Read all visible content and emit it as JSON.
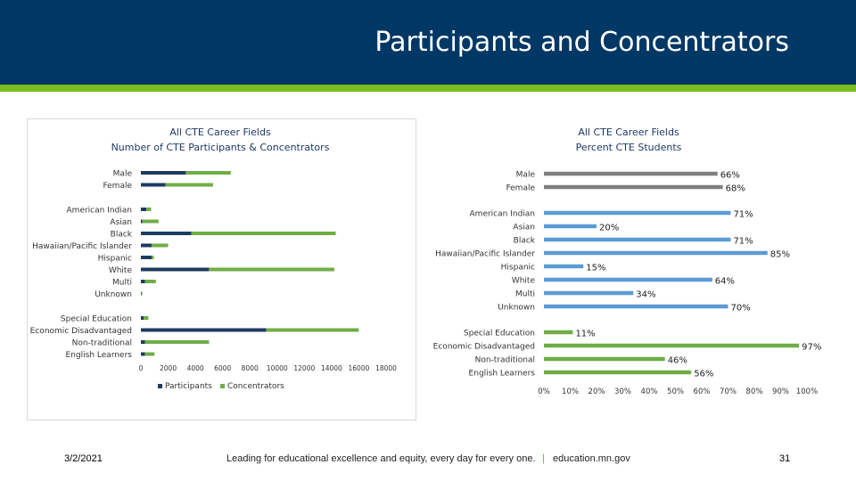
{
  "slide": {
    "title": "Participants and Concentrators",
    "footer_date": "3/2/2021",
    "footer_tagline": "Leading for educational excellence and equity, every day for every one.",
    "footer_separator": "|",
    "footer_site": "education.mn.gov",
    "page_number": "31"
  },
  "colors": {
    "header": "#003865",
    "stripe": "#78be20",
    "participants": "#1f3a5f",
    "concentrators": "#70ad47",
    "percent_gray": "#7f7f7f",
    "percent_blue": "#5b9bd5",
    "percent_green": "#70ad47"
  },
  "chart_data": [
    {
      "type": "bar",
      "orientation": "horizontal",
      "stacked": true,
      "title": "All CTE Career Fields",
      "subtitle": "Number of CTE Participants & Concentrators",
      "xlim": [
        0,
        18000
      ],
      "xticks": [
        "0",
        "2000",
        "4000",
        "6000",
        "8000",
        "10000",
        "12000",
        "14000",
        "16000",
        "18000"
      ],
      "legend": "bottom",
      "categories": [
        "Male",
        "Female",
        "American Indian",
        "Asian",
        "Black",
        "Hawaiian/Pacific Islander",
        "Hispanic",
        "White",
        "Multi",
        "Unknown",
        "Special Education",
        "Economic Disadvantaged",
        "Non-traditional",
        "English Learners"
      ],
      "groups": [
        [
          0,
          1
        ],
        [
          2,
          3,
          4,
          5,
          6,
          7,
          8,
          9
        ],
        [
          10,
          11,
          12,
          13
        ]
      ],
      "series": [
        {
          "name": "Participants",
          "values": [
            3300,
            1800,
            400,
            100,
            3700,
            800,
            800,
            5000,
            300,
            50,
            200,
            9200,
            300,
            300
          ]
        },
        {
          "name": "Concentrators",
          "values": [
            3300,
            3500,
            350,
            1200,
            10600,
            1200,
            150,
            9200,
            800,
            50,
            350,
            6800,
            4700,
            700
          ]
        }
      ]
    },
    {
      "type": "bar",
      "orientation": "horizontal",
      "title": "All CTE Career Fields",
      "subtitle": "Percent CTE Students",
      "xlim": [
        0,
        100
      ],
      "xticks": [
        "0%",
        "10%",
        "20%",
        "30%",
        "40%",
        "50%",
        "60%",
        "70%",
        "80%",
        "90%",
        "100%"
      ],
      "categories": [
        "Male",
        "Female",
        "American Indian",
        "Asian",
        "Black",
        "Hawaiian/Pacific Islander",
        "Hispanic",
        "White",
        "Multi",
        "Unknown",
        "Special Education",
        "Economic Disadvantaged",
        "Non-traditional",
        "English Learners"
      ],
      "groups": [
        [
          0,
          1
        ],
        [
          2,
          3,
          4,
          5,
          6,
          7,
          8,
          9
        ],
        [
          10,
          11,
          12,
          13
        ]
      ],
      "values": [
        66,
        68,
        71,
        20,
        71,
        85,
        15,
        64,
        34,
        70,
        11,
        97,
        46,
        56
      ],
      "labels": [
        "66%",
        "68%",
        "71%",
        "20%",
        "71%",
        "85%",
        "15%",
        "64%",
        "34%",
        "70%",
        "11%",
        "97%",
        "46%",
        "56%"
      ],
      "bar_colors": [
        "#7f7f7f",
        "#7f7f7f",
        "#5b9bd5",
        "#5b9bd5",
        "#5b9bd5",
        "#5b9bd5",
        "#5b9bd5",
        "#5b9bd5",
        "#5b9bd5",
        "#5b9bd5",
        "#70ad47",
        "#70ad47",
        "#70ad47",
        "#70ad47"
      ]
    }
  ]
}
